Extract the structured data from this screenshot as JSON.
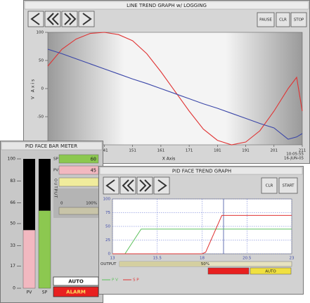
{
  "line_trend": {
    "title": "LINE TREND GRAPH w/ LOGGING",
    "buttons": [
      "PAUSE",
      "CLR",
      "STOP"
    ],
    "y_label": "V Axis",
    "x_label": "X Axis",
    "timestamp": "10:05:55",
    "date": "16-JUN-05",
    "xlim": [
      121,
      211
    ],
    "ylim": [
      -100,
      100
    ],
    "xticks": [
      141,
      151,
      161,
      171,
      181,
      191,
      201,
      211
    ],
    "yticks": [
      100,
      50,
      0,
      -50,
      -100
    ],
    "x": [
      121,
      126,
      131,
      136,
      141,
      146,
      151,
      156,
      161,
      166,
      171,
      176,
      181,
      186,
      191,
      196,
      201,
      206,
      209,
      211
    ],
    "series": [
      {
        "color": "#e03434",
        "values": [
          40,
          70,
          88,
          98,
          100,
          96,
          85,
          62,
          30,
          -5,
          -40,
          -72,
          -92,
          -100,
          -95,
          -75,
          -40,
          0,
          20,
          -40
        ]
      },
      {
        "color": "#3a46a8",
        "values": [
          70,
          62,
          53,
          44,
          35,
          26,
          17,
          9,
          0,
          -9,
          -18,
          -27,
          -35,
          -44,
          -53,
          -62,
          -70,
          -90,
          -86,
          -80
        ]
      }
    ]
  },
  "bar_meter": {
    "title": "PID FACE BAR METER",
    "ylim": [
      0,
      100
    ],
    "yticks": [
      100,
      83,
      66,
      50,
      33,
      17,
      0
    ],
    "bars": [
      {
        "name": "PV",
        "value": 45,
        "color": "#f2b8c0"
      },
      {
        "name": "SP",
        "value": 60,
        "color": "#8cc850"
      }
    ],
    "output_label": "OUTPUT",
    "output_scale": [
      0,
      {
        "value": 100,
        "label": "100%"
      }
    ],
    "auto": "AUTO",
    "alarm": "ALARM"
  },
  "face_trend": {
    "title": "PID FACE TREND GRAPH",
    "buttons": [
      "CLR",
      "START"
    ],
    "xlim": [
      13,
      23
    ],
    "ylim": [
      0,
      100
    ],
    "xticks": [
      13,
      15.5,
      18,
      20.5,
      23
    ],
    "yticks": [
      0,
      25,
      50,
      75,
      100
    ],
    "x": [
      13,
      13.7,
      14.6,
      18,
      18.2,
      19.1,
      23
    ],
    "series": [
      {
        "name": "P V",
        "color": "#5cc05c",
        "values": [
          0,
          0,
          45,
          45,
          45,
          45,
          45
        ]
      },
      {
        "name": "S P",
        "color": "#e03434",
        "values": [
          0,
          0,
          0,
          0,
          3,
          70,
          70
        ]
      }
    ],
    "output_label": "OUTPUT",
    "output": {
      "value": 50,
      "label": "50%"
    },
    "mode": "AUTO"
  }
}
